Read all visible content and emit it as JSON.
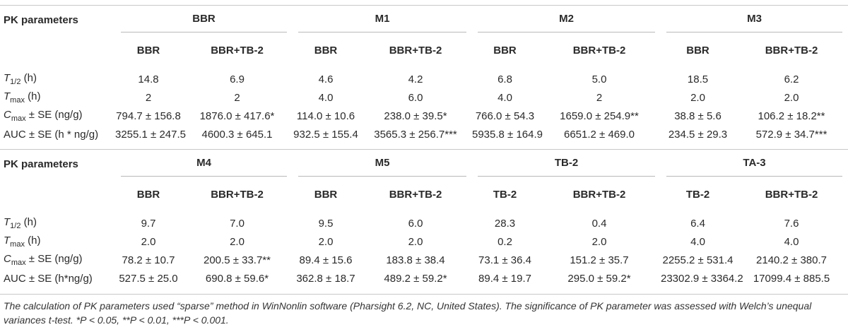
{
  "section1": {
    "pk_header": "PK parameters",
    "groups": [
      "BBR",
      "M1",
      "M2",
      "M3"
    ],
    "sub": [
      "BBR",
      "BBR+TB-2",
      "BBR",
      "BBR+TB-2",
      "BBR",
      "BBR+TB-2",
      "BBR",
      "BBR+TB-2"
    ],
    "rows": [
      {
        "sym": "T",
        "subs": "1/2",
        "unit": " (h)",
        "values": [
          "14.8",
          "6.9",
          "4.6",
          "4.2",
          "6.8",
          "5.0",
          "18.5",
          "6.2"
        ]
      },
      {
        "sym": "T",
        "subs": "max",
        "unit": " (h)",
        "values": [
          "2",
          "2",
          "4.0",
          "6.0",
          "4.0",
          "2",
          "2.0",
          "2.0"
        ]
      },
      {
        "sym": "C",
        "subs": "max",
        "unit": " ± SE (ng/g)",
        "values": [
          "794.7 ± 156.8",
          "1876.0 ± 417.6*",
          "114.0 ± 10.6",
          "238.0 ± 39.5*",
          "766.0 ± 54.3",
          "1659.0 ± 254.9**",
          "38.8 ± 5.6",
          "106.2 ± 18.2**"
        ]
      },
      {
        "label": "AUC ± SE (h * ng/g)",
        "values": [
          "3255.1 ± 247.5",
          "4600.3 ± 645.1",
          "932.5 ± 155.4",
          "3565.3 ± 256.7***",
          "5935.8 ± 164.9",
          "6651.2 ± 469.0",
          "234.5 ± 29.3",
          "572.9 ± 34.7***"
        ]
      }
    ]
  },
  "section2": {
    "pk_header": "PK parameters",
    "groups": [
      "M4",
      "M5",
      "TB-2",
      "TA-3"
    ],
    "sub": [
      "BBR",
      "BBR+TB-2",
      "BBR",
      "BBR+TB-2",
      "TB-2",
      "BBR+TB-2",
      "TB-2",
      "BBR+TB-2"
    ],
    "rows": [
      {
        "sym": "T",
        "subs": "1/2",
        "unit": " (h)",
        "values": [
          "9.7",
          "7.0",
          "9.5",
          "6.0",
          "28.3",
          "0.4",
          "6.4",
          "7.6"
        ]
      },
      {
        "sym": "T",
        "subs": "max",
        "unit": " (h)",
        "values": [
          "2.0",
          "2.0",
          "2.0",
          "2.0",
          "0.2",
          "2.0",
          "4.0",
          "4.0"
        ]
      },
      {
        "sym": "C",
        "subs": "max",
        "unit": " ± SE (ng/g)",
        "values": [
          "78.2 ± 10.7",
          "200.5 ± 33.7**",
          "89.4 ± 15.6",
          "183.8 ± 38.4",
          "73.1 ± 36.4",
          "151.2 ± 35.7",
          "2255.2 ± 531.4",
          "2140.2 ± 380.7"
        ]
      },
      {
        "label": "AUC ± SE (h*ng/g)",
        "values": [
          "527.5 ± 25.0",
          "690.8 ± 59.6*",
          "362.8 ± 18.7",
          "489.2 ± 59.2*",
          "89.4 ± 19.7",
          "295.0 ± 59.2*",
          "23302.9 ± 3364.2",
          "17099.4 ± 885.5"
        ]
      }
    ]
  },
  "footnote": "The calculation of PK parameters used “sparse” method in WinNonlin software (Pharsight 6.2, NC, United States). The significance of PK parameter was assessed with Welch’s unequal variances t-test. *P < 0.05, **P < 0.01, ***P < 0.001."
}
